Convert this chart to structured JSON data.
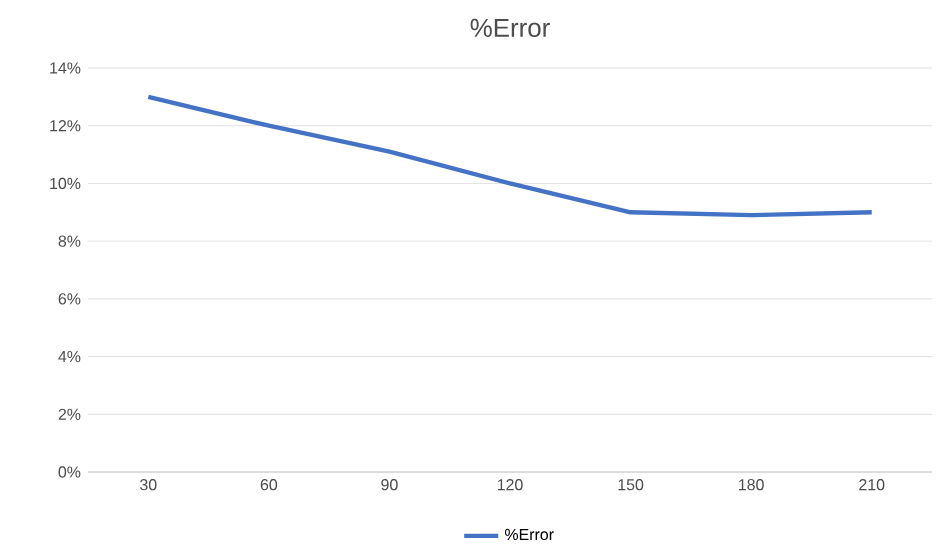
{
  "chart_data": {
    "type": "line",
    "title": "%Error",
    "categories": [
      "30",
      "60",
      "90",
      "120",
      "150",
      "180",
      "210"
    ],
    "series": [
      {
        "name": "%Error",
        "color": "#4472c4",
        "values": [
          13,
          12,
          11.1,
          10,
          9,
          8.9,
          9
        ]
      }
    ],
    "ylim": [
      0,
      14
    ],
    "yticks": [
      {
        "value": 0,
        "label": "0%"
      },
      {
        "value": 2,
        "label": "2%"
      },
      {
        "value": 4,
        "label": "4%"
      },
      {
        "value": 6,
        "label": "6%"
      },
      {
        "value": 8,
        "label": "8%"
      },
      {
        "value": 10,
        "label": "10%"
      },
      {
        "value": 12,
        "label": "12%"
      },
      {
        "value": 14,
        "label": "14%"
      }
    ],
    "grid": "y",
    "legend": "bottom",
    "marker": "none",
    "line_style": "solid"
  }
}
